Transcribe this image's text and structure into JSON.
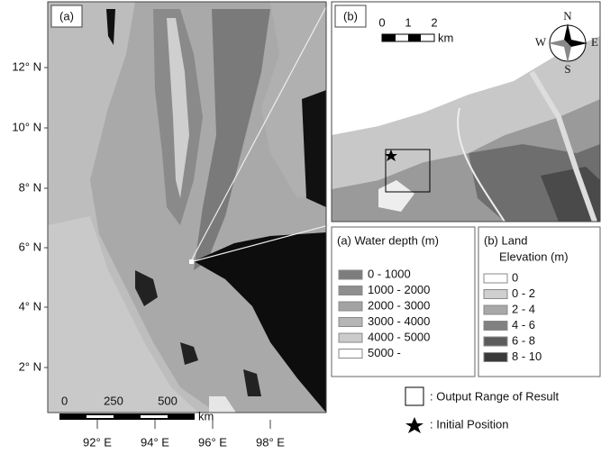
{
  "panel_a": {
    "label": "(a)",
    "lat_labels": [
      "12° N",
      "10° N",
      "8° N",
      "6° N",
      "4° N",
      "2° N"
    ],
    "lon_labels": [
      "92° E",
      "94° E",
      "96° E",
      "98° E"
    ],
    "scale_labels": [
      "0",
      "250",
      "500"
    ],
    "scale_unit": "km"
  },
  "panel_b": {
    "label": "(b)",
    "scale_labels": [
      "0",
      "1",
      "2"
    ],
    "scale_unit": "km",
    "compass": [
      "N",
      "E",
      "S",
      "W"
    ]
  },
  "legend_water": {
    "title": "(a) Water depth (m)",
    "items": [
      "0 - 1000",
      "1000 - 2000",
      "2000 - 3000",
      "3000 - 4000",
      "4000 - 5000",
      "5000 -"
    ]
  },
  "legend_land": {
    "title_lines": [
      "(b) Land",
      "Elevation (m)"
    ],
    "items": [
      "0",
      "0 - 2",
      "2 - 4",
      "4 - 6",
      "6 - 8",
      "8 - 10"
    ]
  },
  "key": {
    "output_range": ": Output Range of Result",
    "initial_position": ": Initial Position"
  }
}
